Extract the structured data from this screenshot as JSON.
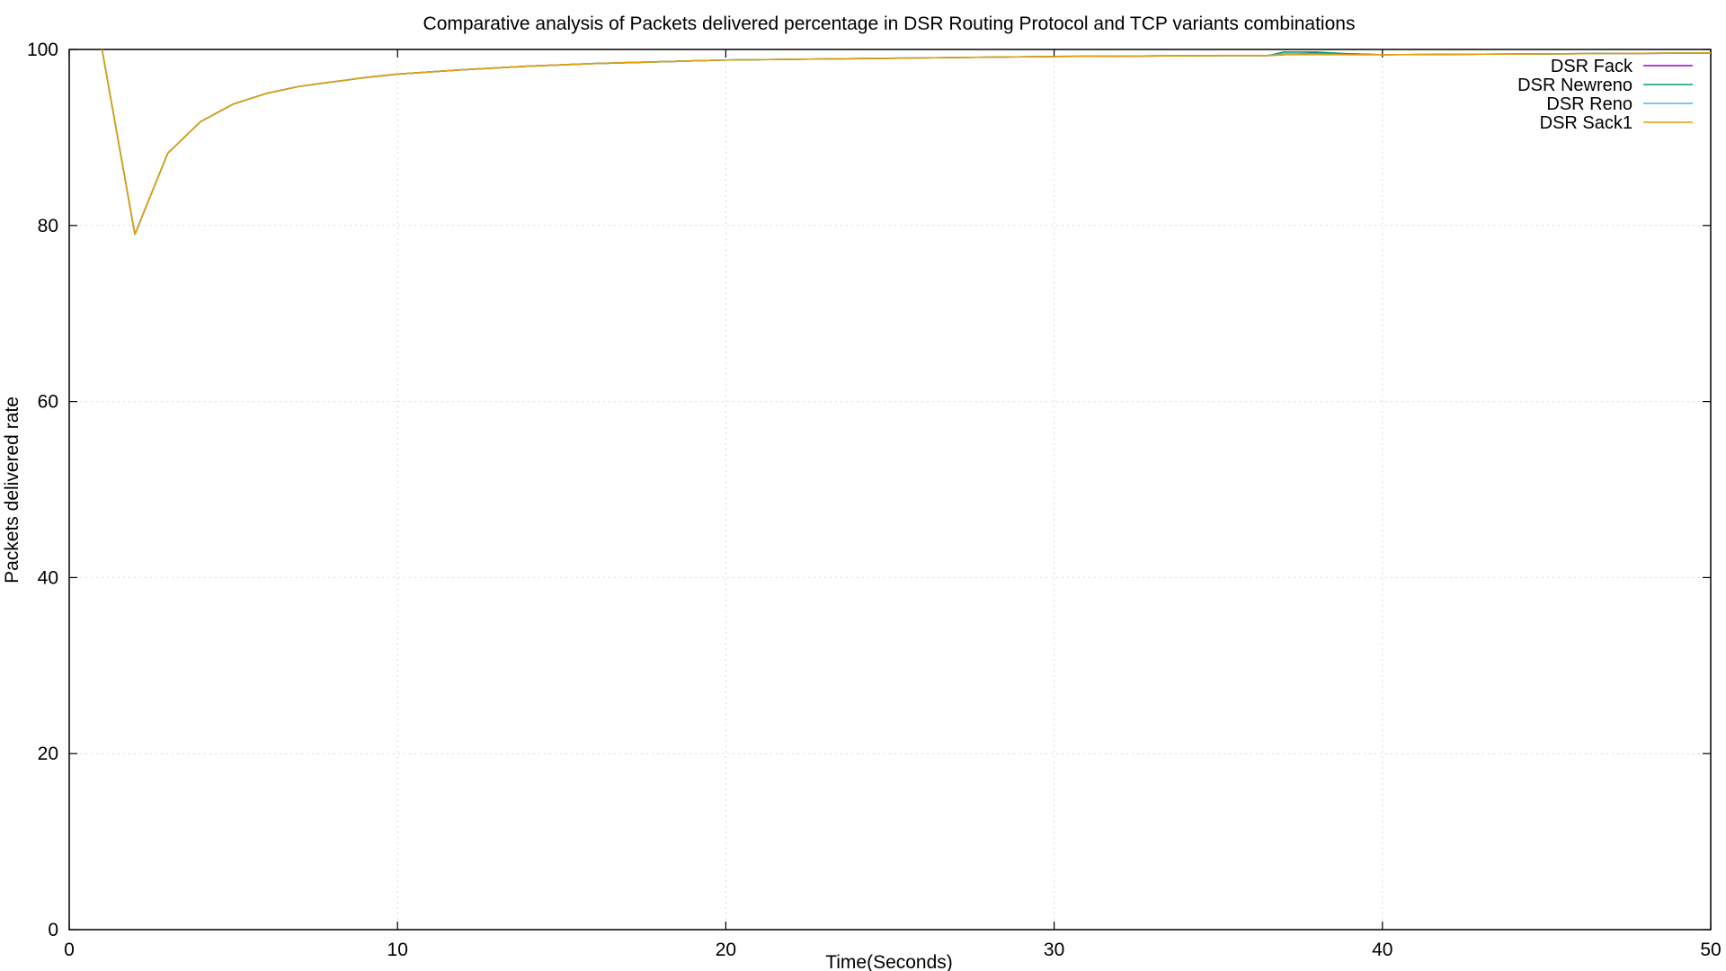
{
  "chart_data": {
    "type": "line",
    "title": "Comparative analysis of Packets delivered percentage in DSR Routing Protocol and TCP variants combinations",
    "xlabel": "Time(Seconds)",
    "ylabel": "Packets delivered rate",
    "xlim": [
      0,
      50
    ],
    "ylim": [
      0,
      100
    ],
    "xticks": [
      0,
      10,
      20,
      30,
      40,
      50
    ],
    "yticks": [
      0,
      20,
      40,
      60,
      80,
      100
    ],
    "grid": true,
    "legend_position": "top-right",
    "series": [
      {
        "name": "DSR Fack",
        "color": "#9400d3",
        "x": [
          1,
          2,
          3,
          4,
          5,
          6,
          7,
          8,
          9,
          10,
          12,
          14,
          16,
          18,
          20,
          25,
          30,
          35,
          36.5,
          37,
          38,
          39,
          40,
          45,
          50
        ],
        "y": [
          100,
          79,
          88.2,
          91.8,
          93.8,
          95,
          95.8,
          96.3,
          96.8,
          97.2,
          97.7,
          98.1,
          98.4,
          98.6,
          98.8,
          99,
          99.2,
          99.3,
          99.3,
          99.4,
          99.6,
          99.5,
          99.4,
          99.5,
          99.6
        ]
      },
      {
        "name": "DSR Newreno",
        "color": "#009e73",
        "x": [
          1,
          2,
          3,
          4,
          5,
          6,
          7,
          8,
          9,
          10,
          12,
          14,
          16,
          18,
          20,
          25,
          30,
          35,
          36.5,
          37,
          38,
          39,
          40,
          45,
          50
        ],
        "y": [
          100,
          79,
          88.2,
          91.8,
          93.8,
          95,
          95.8,
          96.3,
          96.8,
          97.2,
          97.7,
          98.1,
          98.4,
          98.6,
          98.8,
          99,
          99.2,
          99.3,
          99.3,
          99.7,
          99.7,
          99.5,
          99.4,
          99.5,
          99.6
        ]
      },
      {
        "name": "DSR Reno",
        "color": "#56b4e9",
        "x": [
          1,
          2,
          3,
          4,
          5,
          6,
          7,
          8,
          9,
          10,
          12,
          14,
          16,
          18,
          20,
          25,
          30,
          35,
          36.5,
          37,
          38,
          39,
          40,
          45,
          50
        ],
        "y": [
          100,
          79,
          88.2,
          91.8,
          93.8,
          95,
          95.8,
          96.3,
          96.8,
          97.2,
          97.7,
          98.1,
          98.4,
          98.6,
          98.8,
          99,
          99.2,
          99.3,
          99.3,
          99.5,
          99.5,
          99.4,
          99.4,
          99.5,
          99.6
        ]
      },
      {
        "name": "DSR Sack1",
        "color": "#e69f00",
        "x": [
          1,
          2,
          3,
          4,
          5,
          6,
          7,
          8,
          9,
          10,
          12,
          14,
          16,
          18,
          20,
          25,
          30,
          35,
          36.5,
          37,
          38,
          39,
          40,
          45,
          50
        ],
        "y": [
          100,
          79,
          88.2,
          91.8,
          93.8,
          95,
          95.8,
          96.3,
          96.8,
          97.2,
          97.7,
          98.1,
          98.4,
          98.6,
          98.8,
          99,
          99.2,
          99.3,
          99.3,
          99.4,
          99.4,
          99.4,
          99.4,
          99.5,
          99.6
        ]
      }
    ]
  }
}
